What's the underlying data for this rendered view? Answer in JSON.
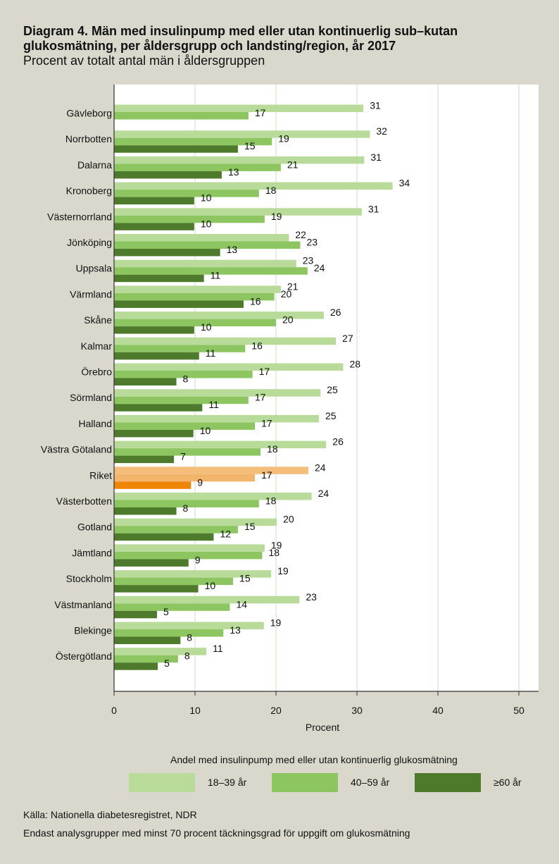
{
  "chart_data": {
    "type": "bar",
    "orientation": "horizontal",
    "title": "Diagram 4. Män med insulinpump med eller utan kontinuerlig sub–kutan glukosmätning, per åldersgrupp och landsting/region, år 2017",
    "subtitle": "Procent av totalt antal män i åldersgruppen",
    "xlabel": "Procent",
    "ylabel": "",
    "xlim": [
      0,
      50
    ],
    "xticks": [
      "0",
      "10",
      "20",
      "30",
      "40",
      "50"
    ],
    "grid": true,
    "legend_title": "Andel med insulinpump med eller utan kontinuerlig glukosmätning",
    "legend_position": "bottom",
    "highlight_category": "Riket",
    "categories": [
      "Gävleborg",
      "Norrbotten",
      "Dalarna",
      "Kronoberg",
      "Västernorrland",
      "Jönköping",
      "Uppsala",
      "Värmland",
      "Skåne",
      "Kalmar",
      "Örebro",
      "Sörmland",
      "Halland",
      "Västra Götaland",
      "Riket",
      "Västerbotten",
      "Gotland",
      "Jämtland",
      "Stockholm",
      "Västmanland",
      "Blekinge",
      "Östergötland"
    ],
    "series": [
      {
        "name": "18–39 år",
        "color": "#b9db9a",
        "highlight_color": "#f5bd7a",
        "values": [
          30.8,
          31.6,
          30.9,
          34.4,
          30.6,
          21.6,
          22.5,
          20.6,
          25.9,
          27.4,
          28.3,
          25.5,
          25.3,
          26.2,
          24.0,
          24.4,
          20.1,
          18.6,
          19.4,
          22.9,
          18.5,
          11.4
        ],
        "labels": [
          "31",
          "32",
          "31",
          "34",
          "31",
          "22",
          "23",
          "21",
          "26",
          "27",
          "28",
          "25",
          "25",
          "26",
          "24",
          "24",
          "20",
          "19",
          "19",
          "23",
          "19",
          "11"
        ]
      },
      {
        "name": "40–59 år",
        "color": "#8dc660",
        "highlight_color": "#f3b56c",
        "values": [
          16.6,
          19.5,
          20.6,
          17.9,
          18.6,
          23.0,
          23.9,
          19.8,
          20.0,
          16.2,
          17.1,
          16.6,
          17.4,
          18.1,
          17.4,
          17.9,
          15.3,
          18.3,
          14.7,
          14.3,
          13.5,
          7.9
        ],
        "labels": [
          "17",
          "19",
          "21",
          "18",
          "19",
          "23",
          "24",
          "20",
          "20",
          "16",
          "17",
          "17",
          "17",
          "18",
          "17",
          "18",
          "15",
          "18",
          "15",
          "14",
          "13",
          "8"
        ]
      },
      {
        "name": "≥60 år",
        "color": "#4e7a2c",
        "highlight_color": "#ee8506",
        "values": [
          null,
          15.3,
          13.3,
          9.9,
          9.9,
          13.1,
          11.1,
          16.0,
          9.9,
          10.5,
          7.7,
          10.9,
          9.8,
          7.4,
          9.5,
          7.7,
          12.3,
          9.2,
          10.4,
          5.3,
          8.2,
          5.4
        ],
        "labels": [
          "",
          "15",
          "13",
          "10",
          "10",
          "13",
          "11",
          "16",
          "10",
          "11",
          "8",
          "11",
          "10",
          "7",
          "9",
          "8",
          "12",
          "9",
          "10",
          "5",
          "8",
          "5"
        ]
      }
    ]
  },
  "footer": {
    "source": "Källa: Nationella diabetesregistret, NDR",
    "note": "Endast analysgrupper med minst 70 procent täckningsgrad för uppgift om glukosmätning"
  }
}
